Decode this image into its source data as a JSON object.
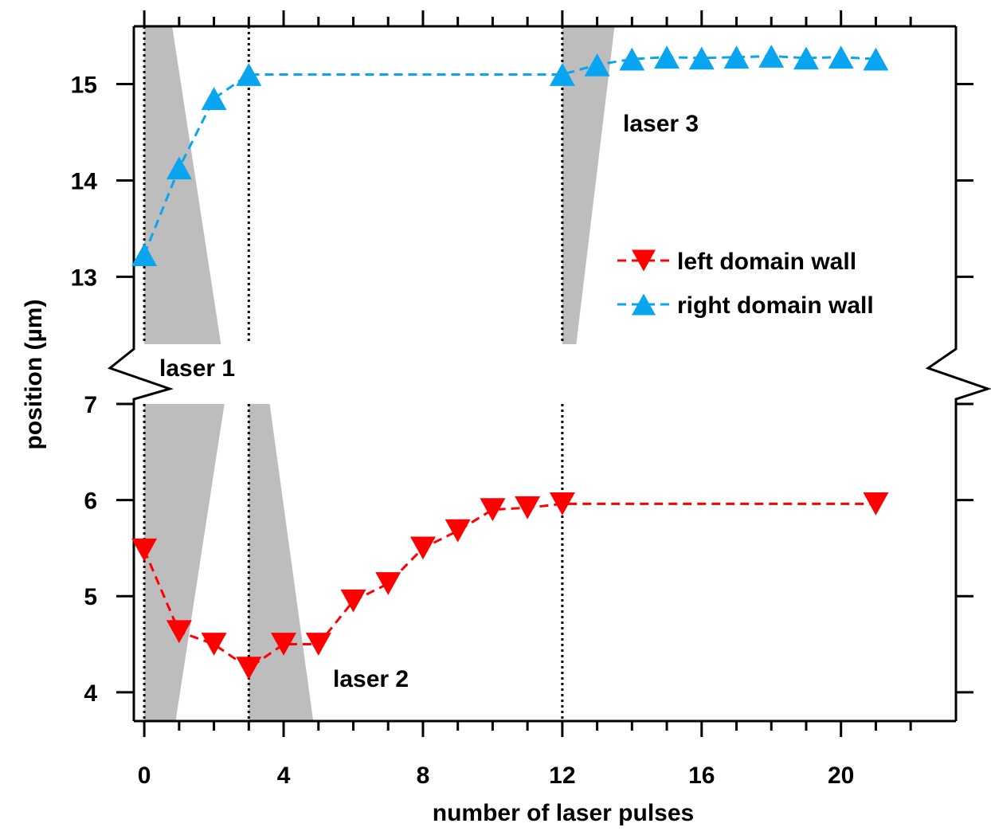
{
  "chart_data": {
    "type": "line",
    "title": "",
    "xlabel": "number of laser pulses",
    "ylabel": "position (µm)",
    "xlim": [
      -0.3,
      23.3
    ],
    "ylim_upper": [
      12.3,
      15.6
    ],
    "ylim_lower": [
      3.7,
      7.0
    ],
    "x_ticks": [
      0,
      4,
      8,
      12,
      16,
      20
    ],
    "y_ticks_upper": [
      13,
      14,
      15
    ],
    "y_ticks_lower": [
      4,
      5,
      6,
      7
    ],
    "axis_break": true,
    "grid": false,
    "legend_position": "center-right",
    "series": [
      {
        "name": "left domain wall",
        "color": "#ff0000",
        "marker": "triangle-down",
        "line_style": "dashed",
        "axis": "lower",
        "x": [
          0,
          1,
          2,
          3,
          4,
          5,
          6,
          7,
          8,
          9,
          10,
          11,
          12,
          21
        ],
        "y": [
          5.48,
          4.63,
          4.5,
          4.25,
          4.5,
          4.5,
          4.95,
          5.13,
          5.5,
          5.68,
          5.9,
          5.92,
          5.96,
          5.96
        ]
      },
      {
        "name": "right domain wall",
        "color": "#0aa5f0",
        "marker": "triangle-up",
        "line_style": "dashed",
        "axis": "upper",
        "x": [
          0,
          1,
          2,
          3,
          12,
          13,
          14,
          15,
          16,
          17,
          18,
          19,
          20,
          21
        ],
        "y": [
          13.23,
          14.13,
          14.85,
          15.1,
          15.1,
          15.2,
          15.26,
          15.28,
          15.27,
          15.28,
          15.29,
          15.27,
          15.28,
          15.26
        ]
      }
    ],
    "vertical_lines_x": [
      0,
      3,
      12
    ],
    "annotations": [
      {
        "text": "laser 1",
        "x": 2.2,
        "y_panel": "break"
      },
      {
        "text": "laser 2",
        "x": 5.3,
        "y": 4.15
      },
      {
        "text": "laser 3",
        "x": 13.8,
        "y": 14.55
      }
    ],
    "shaded_regions": [
      {
        "axis": "upper",
        "x_top": [
          0,
          0.8
        ],
        "x_bottom": [
          0,
          2.2
        ]
      },
      {
        "axis": "lower",
        "x_top": [
          0,
          2.3
        ],
        "x_bottom": [
          0,
          0.9
        ]
      },
      {
        "axis": "lower",
        "x_top": [
          3,
          3.6
        ],
        "x_bottom": [
          3,
          4.85
        ]
      },
      {
        "axis": "upper",
        "x_top": [
          12,
          13.5
        ],
        "x_bottom": [
          12,
          12.4
        ]
      }
    ]
  }
}
